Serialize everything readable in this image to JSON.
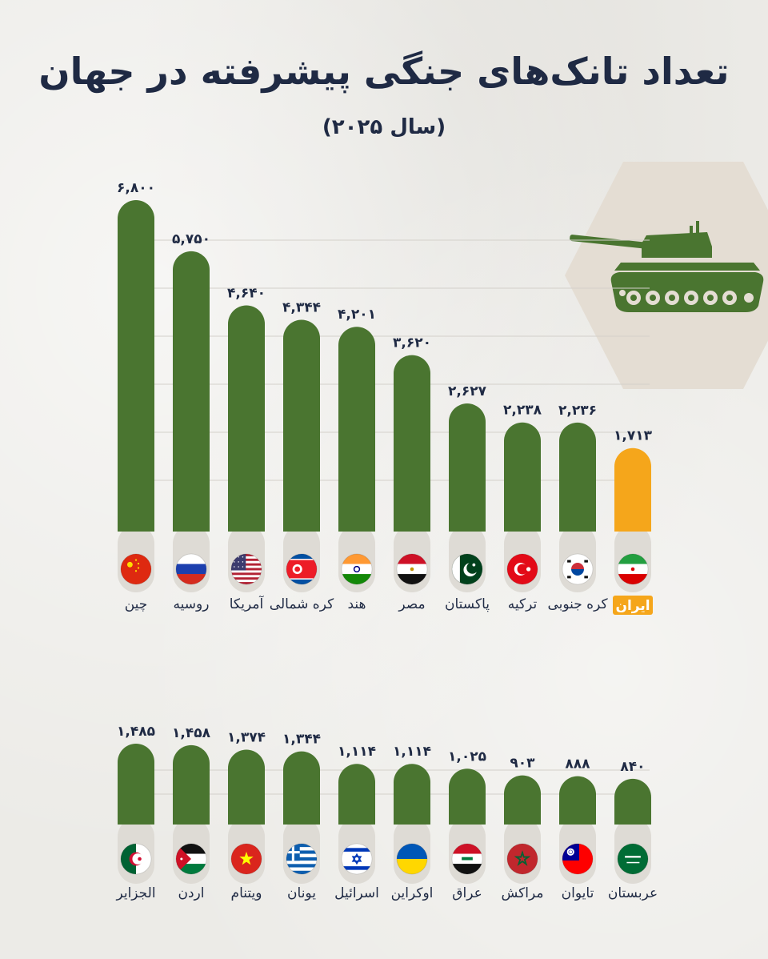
{
  "colors": {
    "bar": "#4a7530",
    "highlight": "#f5a61b",
    "track": "#dedbd5",
    "text": "#1f2a44",
    "hexagon": "#e4ddd3",
    "tank": "#4a7530"
  },
  "header": {
    "title": "تعداد تانک‌های جنگی پیشرفته در جهان",
    "subtitle": "(سال ۲۰۲۵)"
  },
  "icons": {
    "tank": "tank-icon"
  },
  "chart_data": [
    {
      "type": "bar",
      "title": "",
      "xlabel": "",
      "ylabel": "",
      "grid": true,
      "categories": [
        "چین",
        "روسیه",
        "آمریکا",
        "کره شمالی",
        "هند",
        "مصر",
        "پاکستان",
        "ترکیه",
        "کره جنوبی",
        "ایران"
      ],
      "values": [
        6800,
        5750,
        4640,
        4344,
        4201,
        3620,
        2627,
        2238,
        2236,
        1713
      ],
      "value_labels": [
        "۶,۸۰۰",
        "۵,۷۵۰",
        "۴,۶۴۰",
        "۴,۳۴۴",
        "۴,۲۰۱",
        "۳,۶۲۰",
        "۲,۶۲۷",
        "۲,۲۳۸",
        "۲,۲۳۶",
        "۱,۷۱۳"
      ],
      "flags": [
        "china",
        "russia",
        "usa",
        "north-korea",
        "india",
        "egypt",
        "pakistan",
        "turkey",
        "south-korea",
        "iran"
      ],
      "highlight_index": 9,
      "ylim": [
        0,
        6800
      ]
    },
    {
      "type": "bar",
      "title": "",
      "xlabel": "",
      "ylabel": "",
      "grid": true,
      "categories": [
        "الجزایر",
        "اردن",
        "ویتنام",
        "یونان",
        "اسرائیل",
        "اوکراین",
        "عراق",
        "مراکش",
        "تایوان",
        "عربستان"
      ],
      "values": [
        1485,
        1458,
        1374,
        1344,
        1114,
        1114,
        1025,
        903,
        888,
        840
      ],
      "value_labels": [
        "۱,۴۸۵",
        "۱,۴۵۸",
        "۱,۳۷۴",
        "۱,۳۴۴",
        "۱,۱۱۴",
        "۱,۱۱۴",
        "۱,۰۲۵",
        "۹۰۳",
        "۸۸۸",
        "۸۴۰"
      ],
      "flags": [
        "algeria",
        "jordan",
        "vietnam",
        "greece",
        "israel",
        "ukraine",
        "iraq",
        "morocco",
        "taiwan",
        "saudi-arabia"
      ],
      "highlight_index": -1,
      "ylim": [
        0,
        1485
      ]
    }
  ]
}
